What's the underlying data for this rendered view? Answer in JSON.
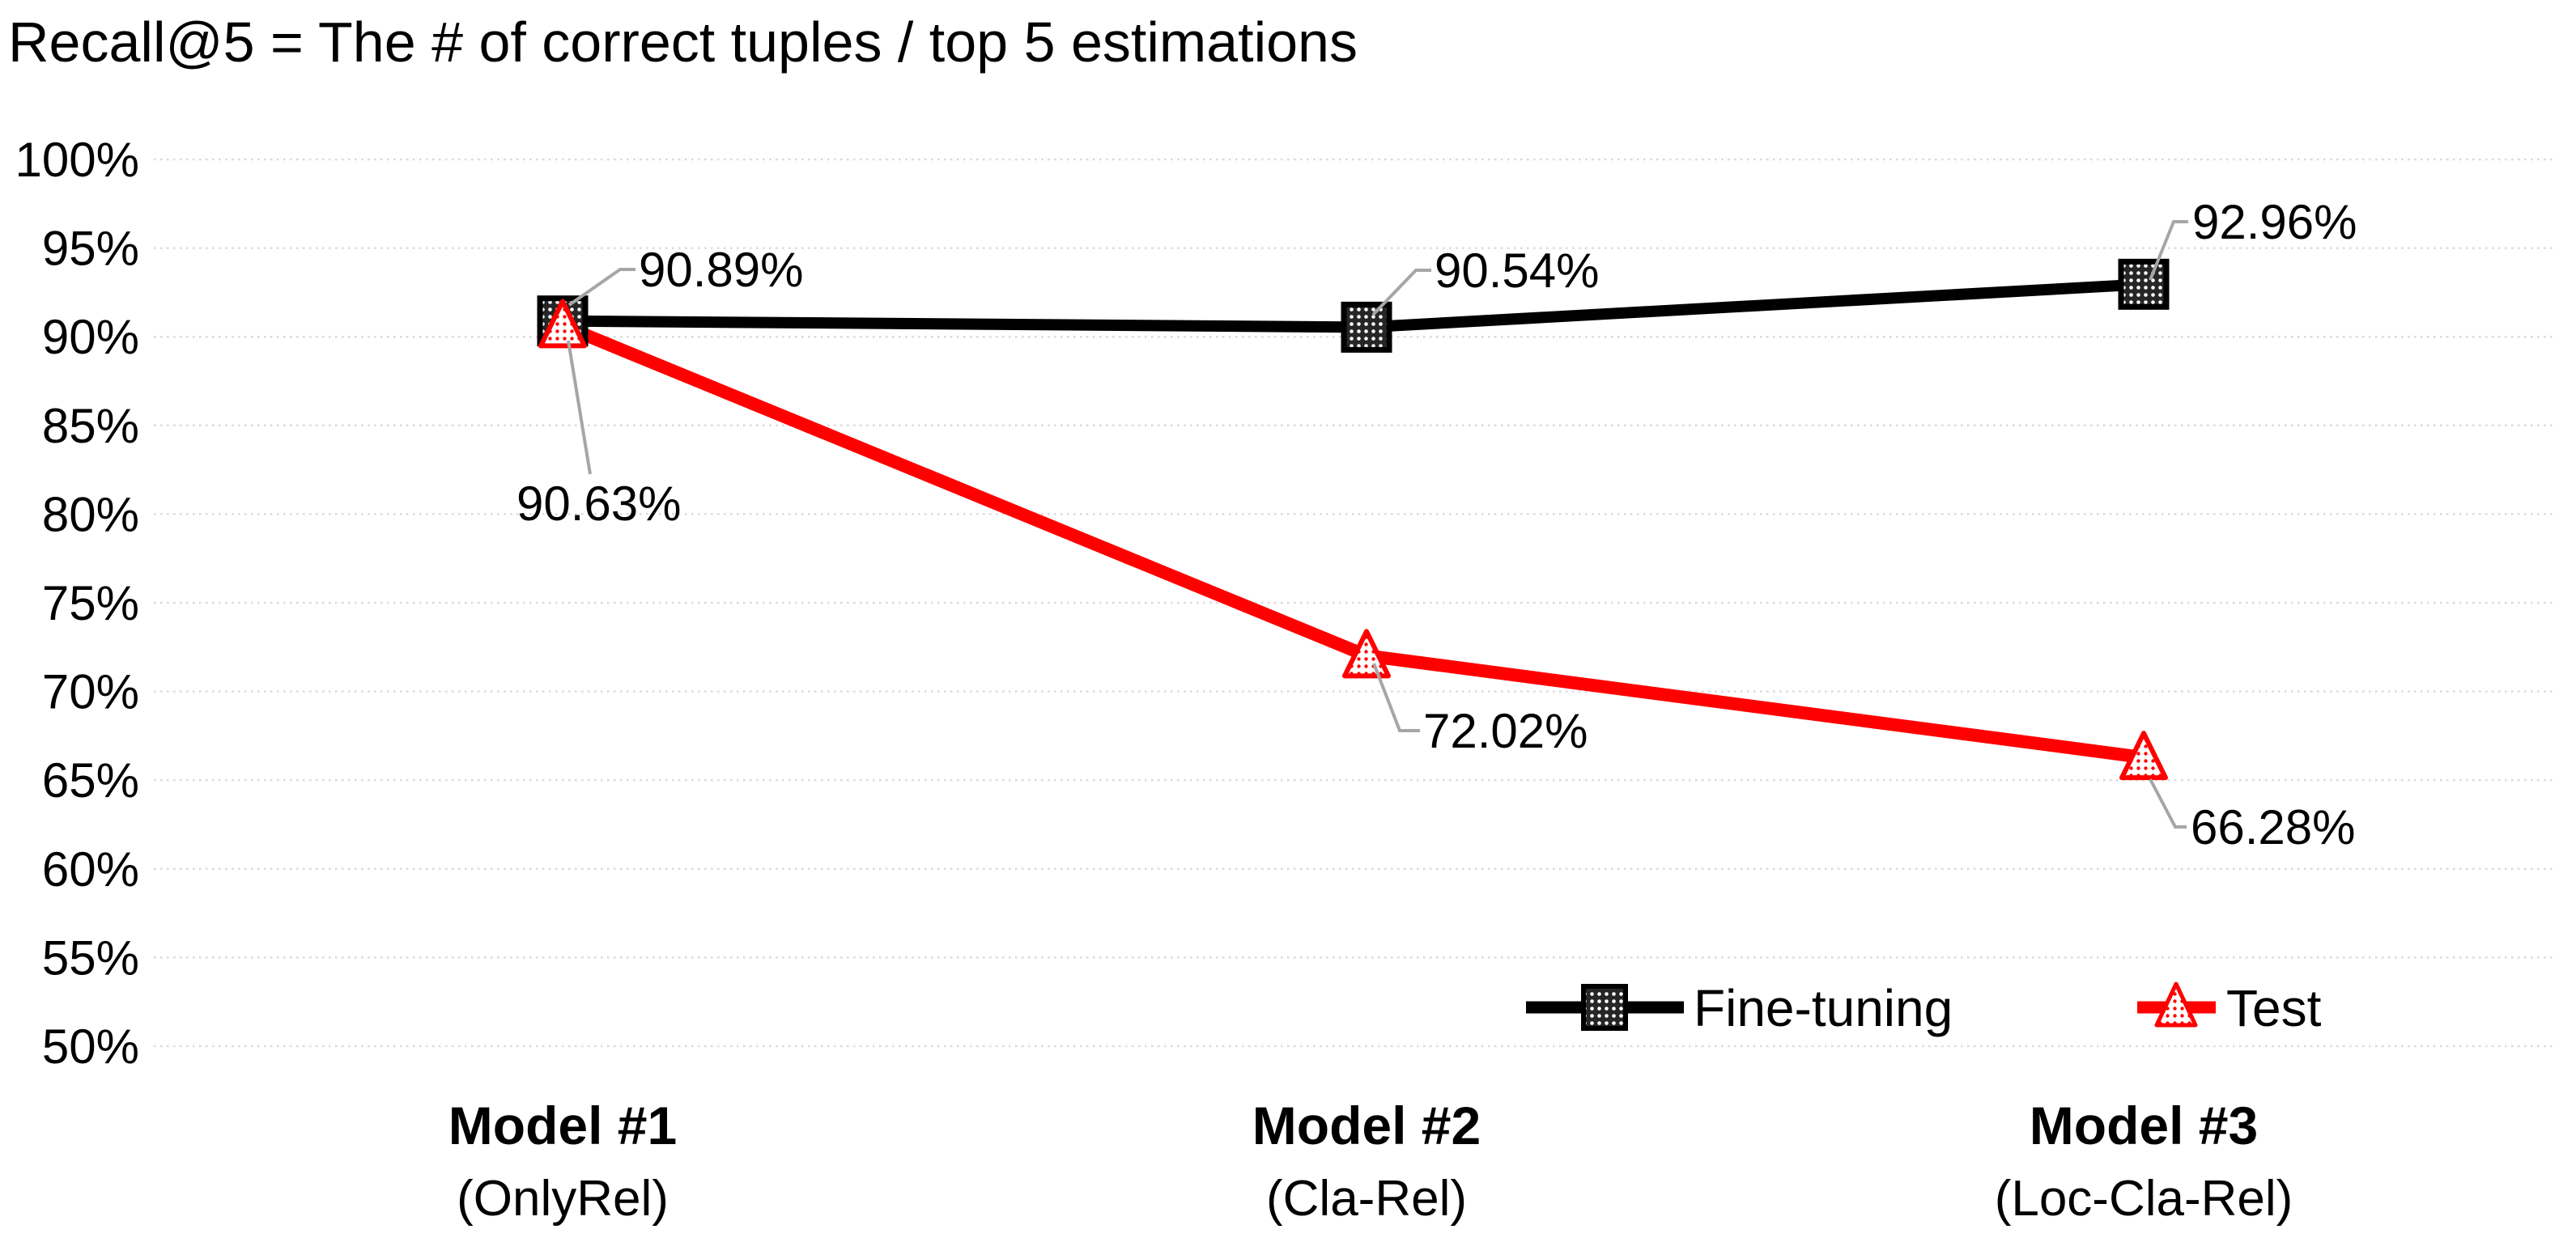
{
  "chart_data": {
    "type": "line",
    "title": "Recall@5 = The # of correct tuples / top 5 estimations",
    "categories": [
      {
        "line1": "Model #1",
        "line2": "(OnlyRel)"
      },
      {
        "line1": "Model #2",
        "line2": "(Cla-Rel)"
      },
      {
        "line1": "Model #3",
        "line2": "(Loc-Cla-Rel)"
      }
    ],
    "series": [
      {
        "name": "Fine-tuning",
        "color": "#000000",
        "marker": "square",
        "marker_fill": "white-dots-on-black",
        "values": [
          90.89,
          90.54,
          92.96
        ],
        "point_labels": [
          "90.89%",
          "90.54%",
          "92.96%"
        ]
      },
      {
        "name": "Test",
        "color": "#ff0000",
        "marker": "triangle",
        "marker_fill": "red-dots-on-white",
        "values": [
          90.63,
          72.02,
          66.28
        ],
        "point_labels": [
          "90.63%",
          "72.02%",
          "66.28%"
        ]
      }
    ],
    "y_axis": {
      "min": 50,
      "max": 100,
      "step": 5,
      "tick_labels": [
        "50%",
        "55%",
        "60%",
        "65%",
        "70%",
        "75%",
        "80%",
        "85%",
        "90%",
        "95%",
        "100%"
      ]
    },
    "grid": {
      "horizontal": true,
      "style": "dotted",
      "color": "#d9d9d9"
    },
    "leader_line_color": "#a6a6a6",
    "legend": {
      "position": "inside-bottom-right",
      "entries": [
        "Fine-tuning",
        "Test"
      ]
    },
    "background": "#ffffff"
  }
}
